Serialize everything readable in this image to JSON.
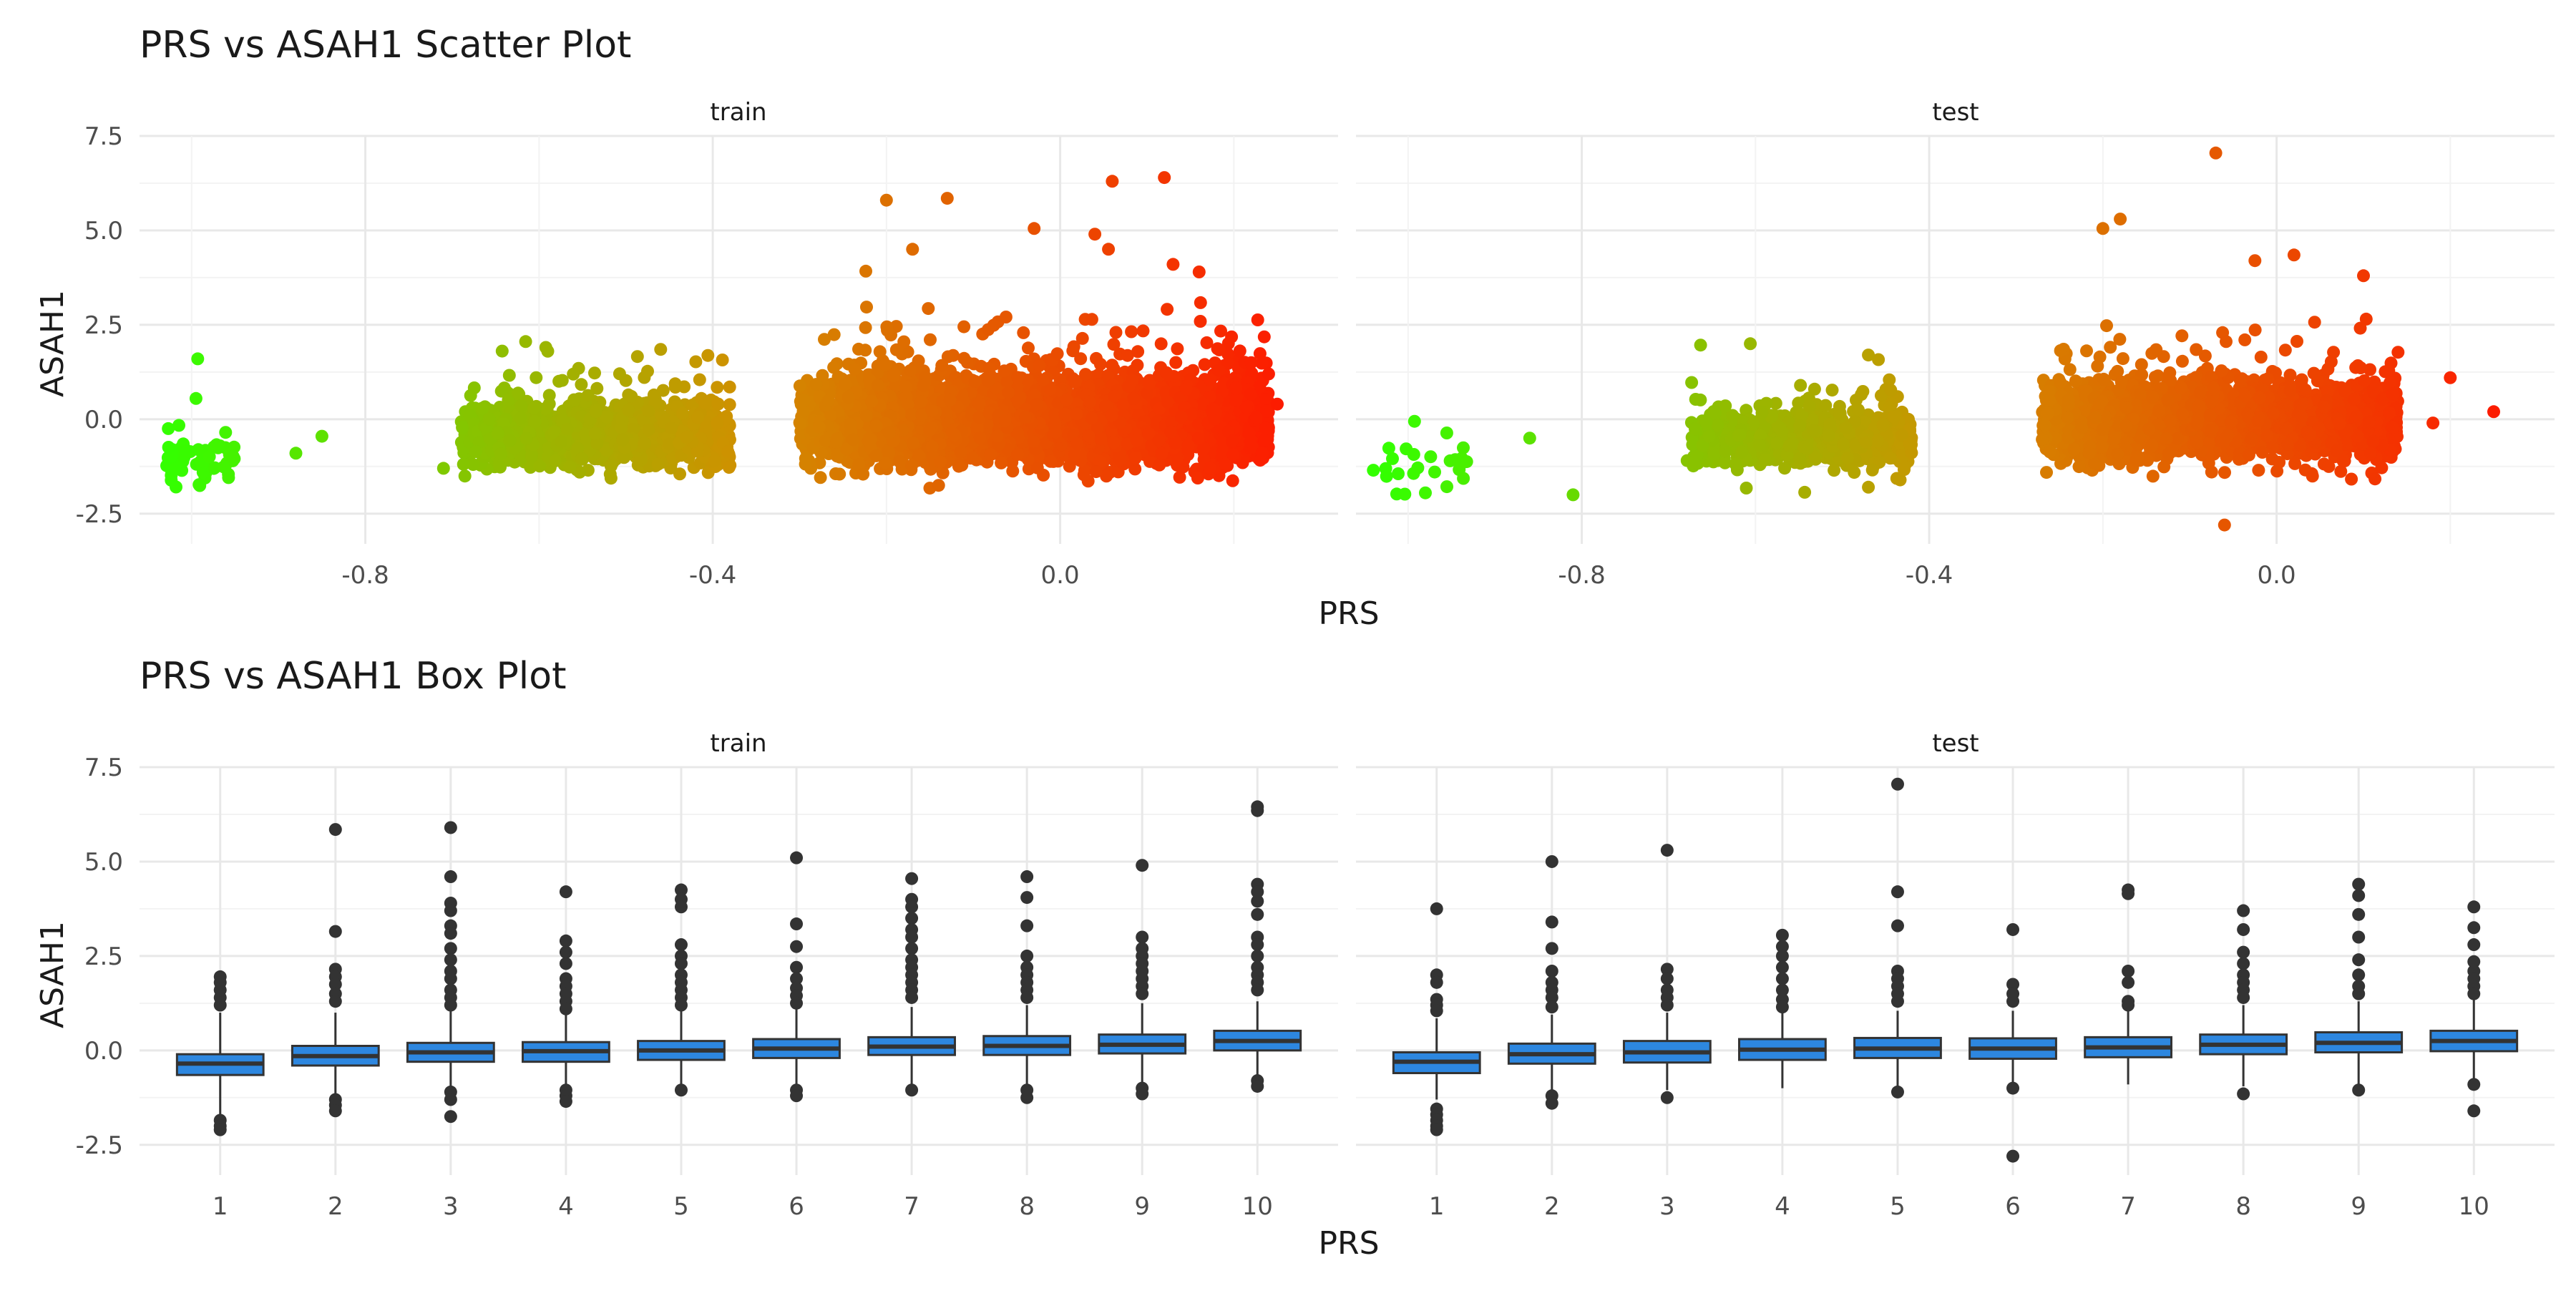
{
  "chart_data": [
    {
      "type": "scatter",
      "title": "PRS vs ASAH1 Scatter Plot",
      "xlabel": "PRS",
      "ylabel": "ASAH1",
      "grid": true,
      "legend": "none",
      "xlim": [
        -1.06,
        0.32
      ],
      "ylim": [
        -3.3,
        7.5
      ],
      "x_ticks": [
        -0.8,
        -0.4,
        0.0
      ],
      "x_tick_labels": [
        "-0.8",
        "-0.4",
        "0.0"
      ],
      "y_ticks": [
        -2.5,
        0.0,
        2.5,
        5.0,
        7.5
      ],
      "y_tick_labels": [
        "-2.5",
        "0.0",
        "2.5",
        "5.0",
        "7.5"
      ],
      "color_scale": {
        "low": "#33ff00",
        "mid": "#d09000",
        "high": "#ff1500"
      },
      "panels": [
        {
          "name": "train",
          "clusters": [
            {
              "x_range": [
                -1.03,
                -0.95
              ],
              "y_mean": -1.15,
              "y_sd": 0.35,
              "n": 60
            },
            {
              "x_range": [
                -0.69,
                -0.38
              ],
              "y_mean": -0.45,
              "y_sd": 0.38,
              "n": 1500
            },
            {
              "x_range": [
                -0.3,
                0.24
              ],
              "y_mean": -0.1,
              "y_sd": 0.5,
              "n": 4500
            }
          ],
          "points": [
            {
              "x": -0.993,
              "y": 1.6
            },
            {
              "x": -0.995,
              "y": 0.55
            },
            {
              "x": -0.88,
              "y": -0.9
            },
            {
              "x": -0.85,
              "y": -0.45
            },
            {
              "x": -0.71,
              "y": -1.3
            },
            {
              "x": -0.59,
              "y": 1.8
            },
            {
              "x": -0.46,
              "y": 1.85
            },
            {
              "x": -0.2,
              "y": 5.8
            },
            {
              "x": -0.13,
              "y": 5.85
            },
            {
              "x": -0.03,
              "y": 5.05
            },
            {
              "x": 0.06,
              "y": 6.3
            },
            {
              "x": 0.12,
              "y": 6.4
            },
            {
              "x": 0.04,
              "y": 4.9
            },
            {
              "x": -0.17,
              "y": 4.5
            },
            {
              "x": 0.16,
              "y": 3.9
            },
            {
              "x": 0.13,
              "y": 4.1
            },
            {
              "x": 0.25,
              "y": 0.4
            },
            {
              "x": 0.22,
              "y": 1.5
            },
            {
              "x": 0.24,
              "y": 1.2
            },
            {
              "x": -0.14,
              "y": -1.75
            }
          ]
        },
        {
          "name": "test",
          "clusters": [
            {
              "x_range": [
                -1.03,
                -0.93
              ],
              "y_mean": -1.1,
              "y_sd": 0.45,
              "n": 25
            },
            {
              "x_range": [
                -0.68,
                -0.42
              ],
              "y_mean": -0.5,
              "y_sd": 0.35,
              "n": 700
            },
            {
              "x_range": [
                -0.27,
                0.14
              ],
              "y_mean": -0.05,
              "y_sd": 0.5,
              "n": 2200
            }
          ],
          "points": [
            {
              "x": -0.606,
              "y": 2.0
            },
            {
              "x": -0.81,
              "y": -2.0
            },
            {
              "x": -0.86,
              "y": -0.5
            },
            {
              "x": -1.04,
              "y": -1.35
            },
            {
              "x": -0.07,
              "y": 7.05
            },
            {
              "x": -0.2,
              "y": 5.05
            },
            {
              "x": -0.18,
              "y": 5.3
            },
            {
              "x": 0.02,
              "y": 4.35
            },
            {
              "x": -0.06,
              "y": -2.8
            },
            {
              "x": -0.47,
              "y": 1.7
            },
            {
              "x": 0.1,
              "y": 3.8
            },
            {
              "x": 0.2,
              "y": 1.1
            },
            {
              "x": 0.25,
              "y": 0.2
            },
            {
              "x": 0.18,
              "y": -0.1
            },
            {
              "x": -0.47,
              "y": -1.8
            },
            {
              "x": -0.025,
              "y": 4.2
            }
          ]
        }
      ]
    },
    {
      "type": "box",
      "title": "PRS vs ASAH1 Box Plot",
      "xlabel": "PRS",
      "ylabel": "ASAH1",
      "grid": true,
      "legend": "none",
      "ylim": [
        -3.3,
        7.5
      ],
      "y_ticks": [
        -2.5,
        0.0,
        2.5,
        5.0,
        7.5
      ],
      "y_tick_labels": [
        "-2.5",
        "0.0",
        "2.5",
        "5.0",
        "7.5"
      ],
      "categories": [
        "1",
        "2",
        "3",
        "4",
        "5",
        "6",
        "7",
        "8",
        "9",
        "10"
      ],
      "box_fill": "#2d87e0",
      "panels": [
        {
          "name": "train",
          "boxes": [
            {
              "q1": -0.65,
              "median": -0.35,
              "q3": -0.1,
              "whisker_low": -1.8,
              "whisker_high": 1.0,
              "outliers": [
                1.2,
                1.4,
                1.6,
                1.8,
                1.95,
                -1.85,
                -2.0,
                -2.1
              ]
            },
            {
              "q1": -0.4,
              "median": -0.15,
              "q3": 0.12,
              "whisker_low": -1.2,
              "whisker_high": 1.0,
              "outliers": [
                5.85,
                3.15,
                2.15,
                1.95,
                1.75,
                1.5,
                1.3,
                -1.3,
                -1.45,
                -1.6
              ]
            },
            {
              "q1": -0.3,
              "median": -0.05,
              "q3": 0.2,
              "whisker_low": -1.05,
              "whisker_high": 1.05,
              "outliers": [
                5.9,
                4.6,
                3.9,
                3.7,
                3.3,
                3.1,
                2.7,
                2.4,
                2.1,
                1.9,
                1.6,
                1.4,
                1.2,
                -1.1,
                -1.3,
                -1.75
              ]
            },
            {
              "q1": -0.3,
              "median": -0.02,
              "q3": 0.22,
              "whisker_low": -1.0,
              "whisker_high": 1.0,
              "outliers": [
                4.2,
                2.9,
                2.6,
                2.3,
                1.9,
                1.7,
                1.5,
                1.3,
                1.1,
                -1.05,
                -1.2,
                -1.35
              ]
            },
            {
              "q1": -0.25,
              "median": 0.0,
              "q3": 0.25,
              "whisker_low": -1.0,
              "whisker_high": 1.05,
              "outliers": [
                4.25,
                4.0,
                3.8,
                2.8,
                2.5,
                2.3,
                2.0,
                1.8,
                1.6,
                1.4,
                1.2,
                -1.05
              ]
            },
            {
              "q1": -0.2,
              "median": 0.05,
              "q3": 0.3,
              "whisker_low": -1.0,
              "whisker_high": 1.1,
              "outliers": [
                5.1,
                3.35,
                2.75,
                2.2,
                1.9,
                1.65,
                1.45,
                1.25,
                -1.05,
                -1.2
              ]
            },
            {
              "q1": -0.12,
              "median": 0.1,
              "q3": 0.35,
              "whisker_low": -1.0,
              "whisker_high": 1.15,
              "outliers": [
                4.55,
                4.0,
                3.8,
                3.5,
                3.2,
                3.0,
                2.7,
                2.4,
                2.2,
                2.0,
                1.8,
                1.6,
                1.4,
                -1.05
              ]
            },
            {
              "q1": -0.12,
              "median": 0.12,
              "q3": 0.38,
              "whisker_low": -1.0,
              "whisker_high": 1.2,
              "outliers": [
                4.6,
                4.05,
                3.3,
                2.5,
                2.2,
                2.0,
                1.8,
                1.6,
                1.4,
                -1.05,
                -1.25
              ]
            },
            {
              "q1": -0.08,
              "median": 0.15,
              "q3": 0.42,
              "whisker_low": -1.0,
              "whisker_high": 1.25,
              "outliers": [
                4.9,
                3.0,
                2.7,
                2.5,
                2.3,
                2.1,
                1.9,
                1.7,
                1.5,
                -1.0,
                -1.15
              ]
            },
            {
              "q1": 0.0,
              "median": 0.25,
              "q3": 0.52,
              "whisker_low": -0.75,
              "whisker_high": 1.3,
              "outliers": [
                6.45,
                6.35,
                4.4,
                4.2,
                3.95,
                3.6,
                3.0,
                2.8,
                2.5,
                2.2,
                2.0,
                1.8,
                1.6,
                -0.8,
                -0.95
              ]
            }
          ]
        },
        {
          "name": "test",
          "boxes": [
            {
              "q1": -0.6,
              "median": -0.3,
              "q3": -0.05,
              "whisker_low": -1.3,
              "whisker_high": 0.85,
              "outliers": [
                3.75,
                2.0,
                1.8,
                1.35,
                1.2,
                1.05,
                -1.55,
                -1.7,
                -1.85,
                -2.0,
                -2.1
              ]
            },
            {
              "q1": -0.35,
              "median": -0.1,
              "q3": 0.18,
              "whisker_low": -1.05,
              "whisker_high": 0.95,
              "outliers": [
                5.0,
                3.4,
                2.7,
                2.1,
                1.8,
                1.6,
                1.4,
                1.15,
                -1.2,
                -1.4
              ]
            },
            {
              "q1": -0.32,
              "median": -0.05,
              "q3": 0.25,
              "whisker_low": -1.05,
              "whisker_high": 1.0,
              "outliers": [
                5.3,
                2.15,
                1.9,
                1.6,
                1.4,
                1.2,
                -1.25
              ]
            },
            {
              "q1": -0.25,
              "median": 0.02,
              "q3": 0.3,
              "whisker_low": -1.0,
              "whisker_high": 1.05,
              "outliers": [
                3.05,
                2.75,
                2.5,
                2.2,
                1.9,
                1.6,
                1.35,
                1.15
              ]
            },
            {
              "q1": -0.2,
              "median": 0.05,
              "q3": 0.33,
              "whisker_low": -1.0,
              "whisker_high": 1.05,
              "outliers": [
                7.05,
                4.2,
                3.3,
                2.1,
                1.9,
                1.7,
                1.5,
                1.3,
                -1.1
              ]
            },
            {
              "q1": -0.22,
              "median": 0.05,
              "q3": 0.32,
              "whisker_low": -0.95,
              "whisker_high": 1.05,
              "outliers": [
                3.2,
                1.75,
                1.5,
                1.3,
                -1.0,
                -2.8
              ]
            },
            {
              "q1": -0.18,
              "median": 0.08,
              "q3": 0.35,
              "whisker_low": -0.9,
              "whisker_high": 1.1,
              "outliers": [
                4.25,
                4.15,
                2.1,
                1.8,
                1.3,
                1.2
              ]
            },
            {
              "q1": -0.1,
              "median": 0.15,
              "q3": 0.42,
              "whisker_low": -0.95,
              "whisker_high": 1.2,
              "outliers": [
                3.7,
                3.2,
                2.6,
                2.3,
                2.0,
                1.8,
                1.6,
                1.4,
                -1.15
              ]
            },
            {
              "q1": -0.05,
              "median": 0.2,
              "q3": 0.48,
              "whisker_low": -0.95,
              "whisker_high": 1.3,
              "outliers": [
                4.4,
                4.1,
                3.6,
                3.0,
                2.4,
                2.0,
                1.7,
                1.5,
                -1.05
              ]
            },
            {
              "q1": -0.02,
              "median": 0.25,
              "q3": 0.52,
              "whisker_low": -0.85,
              "whisker_high": 1.35,
              "outliers": [
                3.8,
                3.25,
                2.8,
                2.35,
                2.1,
                1.9,
                1.7,
                1.5,
                -0.9,
                -1.6
              ]
            }
          ]
        }
      ]
    }
  ]
}
